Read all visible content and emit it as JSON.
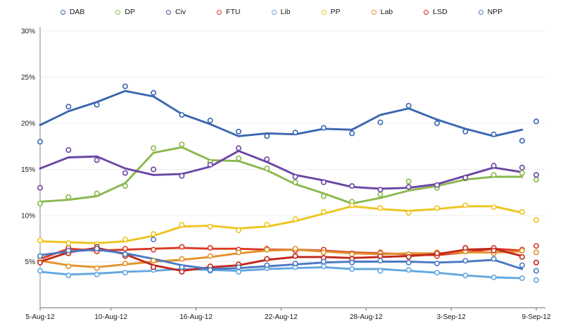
{
  "chart_data": {
    "type": "line",
    "title": "",
    "description": "Opinion polling tracker, smoothed trend lines with raw poll open-circle markers, 5-Aug-12 to 9-Sep-12",
    "legend_position": "top",
    "marker_style": "open-circle",
    "grid": "horizontal",
    "x_tick_labels": [
      "5-Aug-12",
      "10-Aug-12",
      "16-Aug-12",
      "22-Aug-12",
      "28-Aug-12",
      "3-Sep-12",
      "9-Sep-12"
    ],
    "x_tick_days": [
      0,
      5,
      11,
      17,
      23,
      29,
      35
    ],
    "xlim_days": [
      0,
      35
    ],
    "y_ticks": [
      5,
      10,
      15,
      20,
      25,
      30
    ],
    "y_tick_suffix": "%",
    "ylim": [
      0,
      30
    ],
    "axis_color": "#8a8a8a",
    "grid_color": "#ececec",
    "text_color": "#1a1a1a",
    "days": [
      0,
      2,
      4,
      6,
      8,
      10,
      12,
      14,
      16,
      18,
      20,
      22,
      24,
      26,
      28,
      30,
      32,
      34
    ],
    "final_day": 35,
    "series": [
      {
        "name": "DAB",
        "color": "#3a66b0",
        "line": [
          19.8,
          21.3,
          22.3,
          23.5,
          22.9,
          21.0,
          19.9,
          18.6,
          18.9,
          18.8,
          19.4,
          19.3,
          20.9,
          21.6,
          20.4,
          19.4,
          18.6,
          19.3
        ],
        "points": [
          18.0,
          21.8,
          22.0,
          24.0,
          23.3,
          20.9,
          20.3,
          19.1,
          18.6,
          19.0,
          19.5,
          18.9,
          20.1,
          21.9,
          20.0,
          19.1,
          18.8,
          18.1,
          20.2
        ]
      },
      {
        "name": "DP",
        "color": "#8ab84e",
        "line": [
          11.5,
          11.7,
          12.1,
          13.5,
          16.8,
          17.4,
          16.0,
          15.9,
          14.9,
          13.4,
          12.4,
          11.3,
          11.9,
          12.7,
          13.2,
          13.9,
          14.2,
          14.2
        ],
        "points": [
          11.3,
          12.0,
          12.4,
          13.2,
          17.3,
          17.7,
          15.8,
          16.2,
          15.1,
          13.6,
          12.1,
          11.5,
          12.3,
          13.7,
          13.0,
          14.0,
          14.4,
          14.6,
          13.9
        ]
      },
      {
        "name": "Civ",
        "color": "#6b46a5",
        "line": [
          15.1,
          16.3,
          16.4,
          15.1,
          14.4,
          14.5,
          15.3,
          17.0,
          15.8,
          14.4,
          13.8,
          13.1,
          12.9,
          13.0,
          13.4,
          14.3,
          15.2,
          14.7
        ],
        "points": [
          13.0,
          17.1,
          16.0,
          14.6,
          15.0,
          14.3,
          15.5,
          17.3,
          16.1,
          14.2,
          13.6,
          13.2,
          12.8,
          13.1,
          13.3,
          14.1,
          15.4,
          15.2,
          14.4
        ]
      },
      {
        "name": "FTU",
        "color": "#d93a25",
        "line": [
          5.3,
          6.4,
          6.2,
          6.3,
          6.4,
          6.5,
          6.4,
          6.4,
          6.3,
          6.3,
          6.2,
          6.0,
          5.9,
          5.8,
          5.7,
          6.0,
          6.4,
          6.2
        ],
        "points": [
          5.1,
          6.5,
          6.1,
          6.4,
          6.3,
          6.6,
          6.5,
          6.3,
          6.4,
          6.2,
          6.3,
          5.9,
          6.0,
          5.7,
          5.6,
          6.1,
          6.5,
          6.3,
          6.7
        ]
      },
      {
        "name": "Lib",
        "color": "#62a8e0",
        "line": [
          3.9,
          3.6,
          3.7,
          3.9,
          4.0,
          4.2,
          4.1,
          4.0,
          4.2,
          4.3,
          4.4,
          4.2,
          4.2,
          4.0,
          3.8,
          3.5,
          3.3,
          3.2
        ],
        "points": [
          4.0,
          3.5,
          3.6,
          3.8,
          4.1,
          4.3,
          4.0,
          3.9,
          4.3,
          4.4,
          4.5,
          4.2,
          4.0,
          4.1,
          3.8,
          3.5,
          3.3,
          3.2,
          3.0
        ]
      },
      {
        "name": "PP",
        "color": "#eec41e",
        "line": [
          7.2,
          7.1,
          7.0,
          7.2,
          7.8,
          8.8,
          8.9,
          8.6,
          8.8,
          9.4,
          10.2,
          11.0,
          10.7,
          10.5,
          10.7,
          11.0,
          11.0,
          10.3
        ],
        "points": [
          7.3,
          7.0,
          6.9,
          7.4,
          8.0,
          9.0,
          8.8,
          8.4,
          9.0,
          9.6,
          10.4,
          11.1,
          10.8,
          10.3,
          10.8,
          11.1,
          10.9,
          10.4,
          9.5
        ]
      },
      {
        "name": "Lab",
        "color": "#e2922d",
        "line": [
          5.1,
          4.6,
          4.4,
          4.7,
          5.0,
          5.2,
          5.5,
          5.9,
          6.2,
          6.3,
          6.1,
          5.9,
          5.8,
          5.9,
          5.9,
          6.0,
          6.0,
          6.1
        ],
        "points": [
          5.2,
          4.5,
          4.3,
          4.8,
          5.1,
          5.3,
          5.6,
          6.0,
          6.3,
          6.4,
          6.0,
          5.8,
          5.9,
          5.8,
          6.0,
          6.1,
          5.9,
          6.2,
          6.0
        ]
      },
      {
        "name": "LSD",
        "color": "#c0281c",
        "line": [
          5.0,
          6.0,
          6.5,
          5.8,
          4.6,
          4.0,
          4.4,
          4.6,
          5.2,
          5.5,
          5.5,
          5.4,
          5.5,
          5.6,
          5.8,
          6.3,
          6.4,
          5.6
        ],
        "points": [
          4.9,
          5.9,
          6.6,
          5.6,
          4.4,
          3.9,
          4.5,
          4.7,
          5.3,
          5.6,
          5.4,
          5.3,
          5.6,
          5.5,
          5.9,
          6.5,
          6.2,
          5.5,
          4.9
        ]
      },
      {
        "name": "NPP",
        "color": "#4b79c4",
        "line": [
          5.7,
          6.1,
          6.3,
          5.9,
          5.3,
          4.6,
          4.2,
          4.3,
          4.5,
          4.7,
          4.9,
          5.0,
          5.0,
          5.0,
          4.9,
          5.0,
          5.2,
          4.2
        ],
        "points": [
          5.6,
          6.2,
          6.4,
          5.8,
          7.4,
          4.4,
          4.1,
          4.4,
          4.6,
          4.8,
          5.0,
          4.9,
          5.1,
          4.9,
          4.8,
          5.1,
          5.3,
          4.6,
          4.0
        ]
      }
    ]
  }
}
